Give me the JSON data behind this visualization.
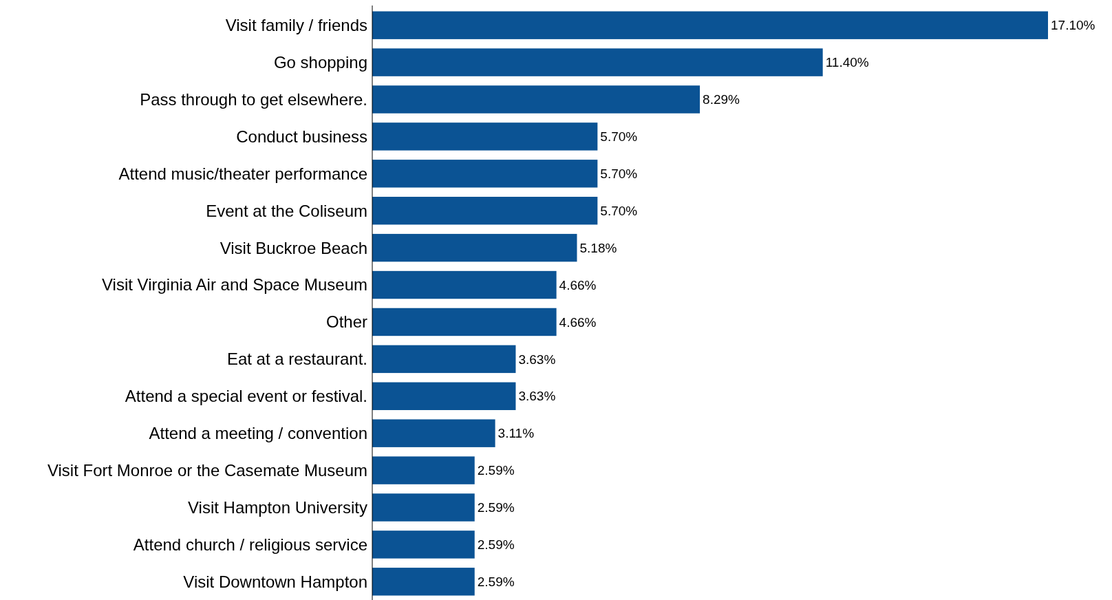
{
  "chart_data": {
    "type": "bar",
    "orientation": "horizontal",
    "color": "#0b5394",
    "data_labels": true,
    "categories": [
      "Visit family / friends",
      "Go shopping",
      "Pass through to get elsewhere.",
      "Conduct business",
      "Attend music/theater performance",
      "Event at the Coliseum",
      "Visit Buckroe Beach",
      "Visit Virginia Air and Space Museum",
      "Other",
      "Eat at a restaurant.",
      "Attend a special event or festival.",
      "Attend a meeting / convention",
      "Visit Fort Monroe or the Casemate Museum",
      "Visit Hampton University",
      "Attend church / religious service",
      "Visit Downtown Hampton"
    ],
    "values": [
      17.1,
      11.4,
      8.29,
      5.7,
      5.7,
      5.7,
      5.18,
      4.66,
      4.66,
      3.63,
      3.63,
      3.11,
      2.59,
      2.59,
      2.59,
      2.59
    ],
    "value_labels": [
      "17.10%",
      "11.40%",
      "8.29%",
      "5.70%",
      "5.70%",
      "5.70%",
      "5.18%",
      "4.66%",
      "4.66%",
      "3.63%",
      "3.63%",
      "3.11%",
      "2.59%",
      "2.59%",
      "2.59%",
      "2.59%"
    ],
    "xlabel": null
  }
}
